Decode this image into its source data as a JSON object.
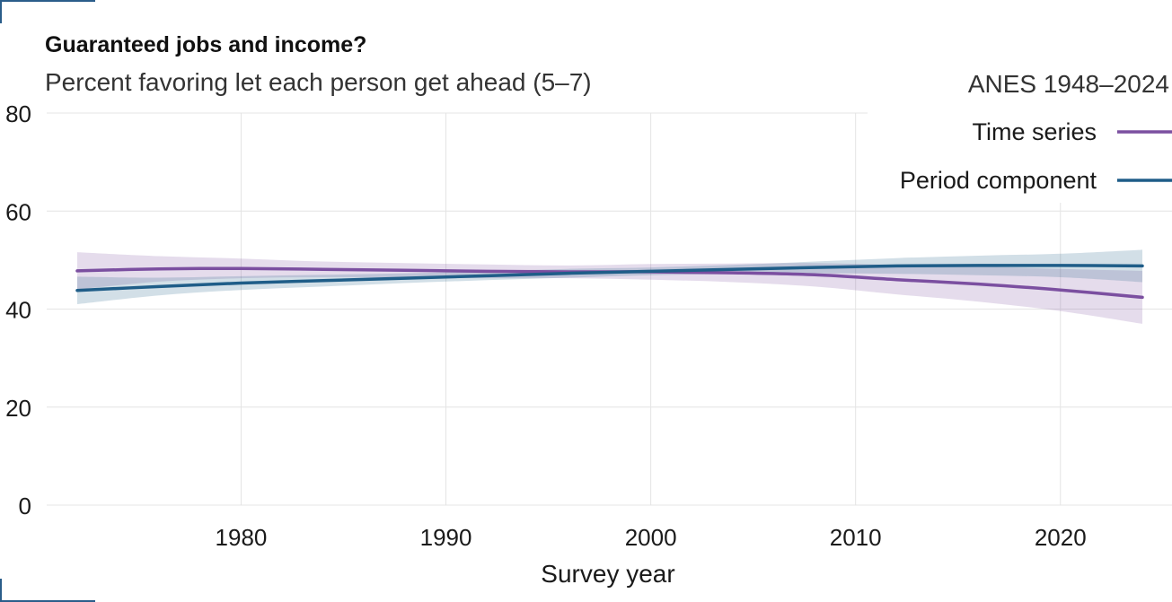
{
  "chart_data": {
    "type": "line",
    "title": "Guaranteed jobs and income?",
    "subtitle": "Percent favoring let each person get ahead (5–7)",
    "source": "ANES 1948–2024",
    "xlabel": "Survey year",
    "ylabel": "",
    "xlim": [
      1972,
      2024
    ],
    "ylim": [
      0,
      80
    ],
    "x_ticks": [
      1980,
      1990,
      2000,
      2010,
      2020
    ],
    "y_ticks": [
      0,
      20,
      40,
      60,
      80
    ],
    "grid": true,
    "legend_position": "top-right",
    "series": [
      {
        "name": "Time series",
        "color": "#7b4fa0",
        "x": [
          1972,
          1976,
          1980,
          1984,
          1988,
          1992,
          1996,
          2000,
          2004,
          2008,
          2012,
          2016,
          2020,
          2024
        ],
        "y": [
          47.8,
          48.2,
          48.3,
          48.1,
          47.9,
          47.7,
          47.6,
          47.6,
          47.4,
          47.0,
          46.0,
          45.1,
          43.9,
          42.4
        ],
        "lower": [
          44.0,
          45.6,
          46.3,
          46.5,
          46.4,
          46.3,
          46.3,
          46.0,
          45.5,
          44.6,
          43.0,
          41.5,
          39.6,
          37.0
        ],
        "upper": [
          51.6,
          50.8,
          50.3,
          49.7,
          49.4,
          49.1,
          48.9,
          49.2,
          49.3,
          49.4,
          49.0,
          48.7,
          48.2,
          47.8
        ]
      },
      {
        "name": "Period component",
        "color": "#1f5d88",
        "x": [
          1972,
          1976,
          1980,
          1984,
          1988,
          1992,
          1996,
          2000,
          2004,
          2008,
          2012,
          2016,
          2020,
          2024
        ],
        "y": [
          43.8,
          44.6,
          45.3,
          45.8,
          46.3,
          46.8,
          47.3,
          47.7,
          48.1,
          48.5,
          48.8,
          48.9,
          48.9,
          48.8
        ],
        "lower": [
          41.0,
          42.8,
          43.9,
          44.6,
          45.3,
          45.9,
          46.4,
          46.9,
          47.2,
          47.3,
          47.2,
          46.9,
          46.5,
          45.5
        ],
        "upper": [
          46.6,
          46.4,
          46.7,
          47.0,
          47.3,
          47.7,
          48.2,
          48.5,
          49.0,
          49.7,
          50.4,
          50.9,
          51.3,
          52.1
        ]
      }
    ]
  }
}
